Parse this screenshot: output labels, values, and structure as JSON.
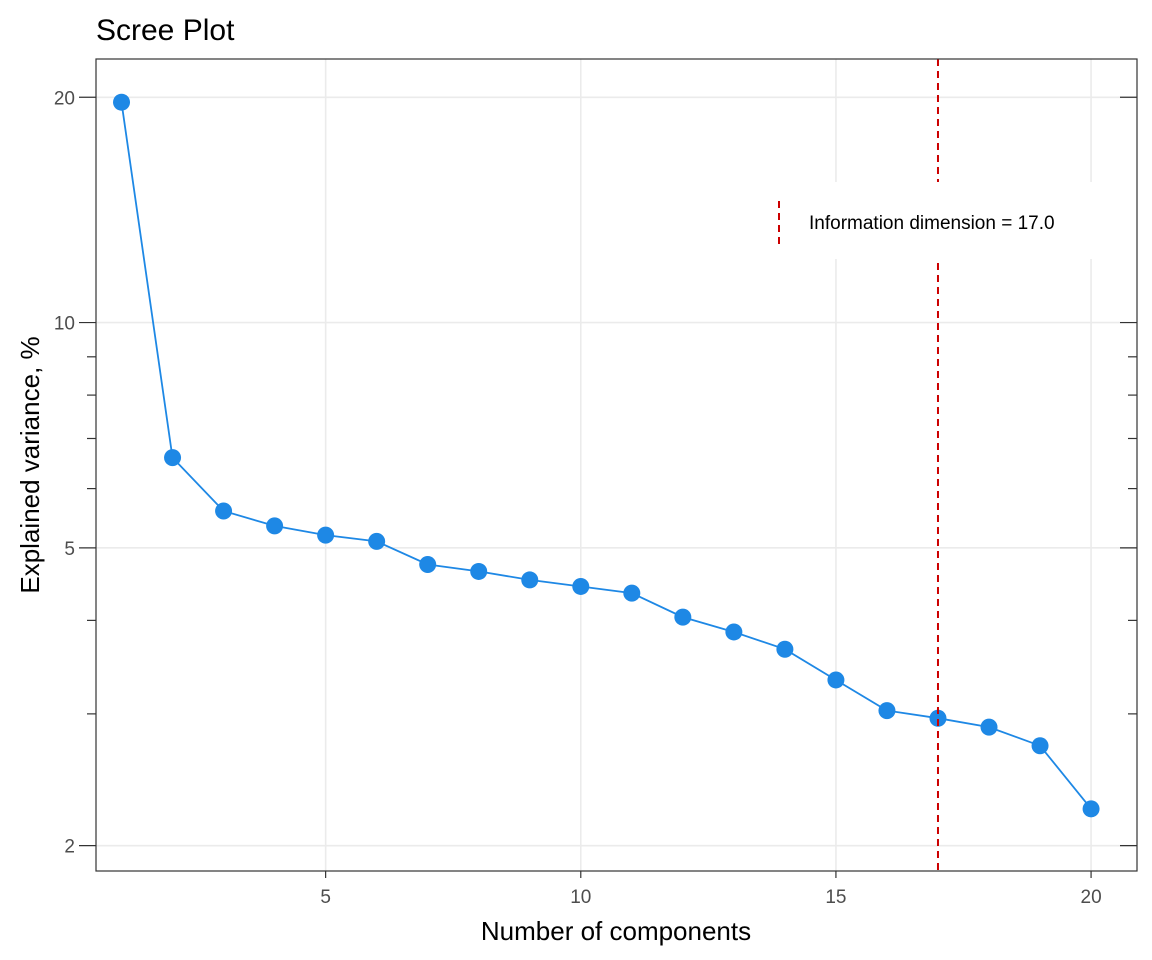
{
  "chart_data": {
    "type": "line",
    "title": "Scree Plot",
    "xlabel": "Number of components",
    "ylabel": "Explained variance, %",
    "y_scale": "log",
    "xlim": [
      0.5,
      20.9
    ],
    "ylim": [
      1.85,
      22.5
    ],
    "x_ticks": [
      5,
      10,
      15,
      20
    ],
    "y_ticks": [
      2,
      5,
      10,
      20
    ],
    "y_minor_ticks": [
      3,
      4,
      6,
      7,
      8,
      9
    ],
    "grid": true,
    "series": [
      {
        "x": [
          1,
          2,
          3,
          4,
          5,
          6,
          7,
          8,
          9,
          10,
          11,
          12,
          13,
          14,
          15,
          16,
          17,
          18,
          19,
          20
        ],
        "values": [
          19.7,
          6.6,
          5.6,
          5.35,
          5.2,
          5.1,
          4.75,
          4.65,
          4.53,
          4.44,
          4.35,
          4.04,
          3.86,
          3.66,
          3.33,
          3.03,
          2.96,
          2.88,
          2.72,
          2.24
        ],
        "color": "#1e88e5"
      }
    ],
    "reference_line": {
      "x": 17,
      "color": "#cc0000",
      "style": "dashed",
      "label": "Information dimension = 17.0"
    },
    "legend_position": "top-right"
  }
}
